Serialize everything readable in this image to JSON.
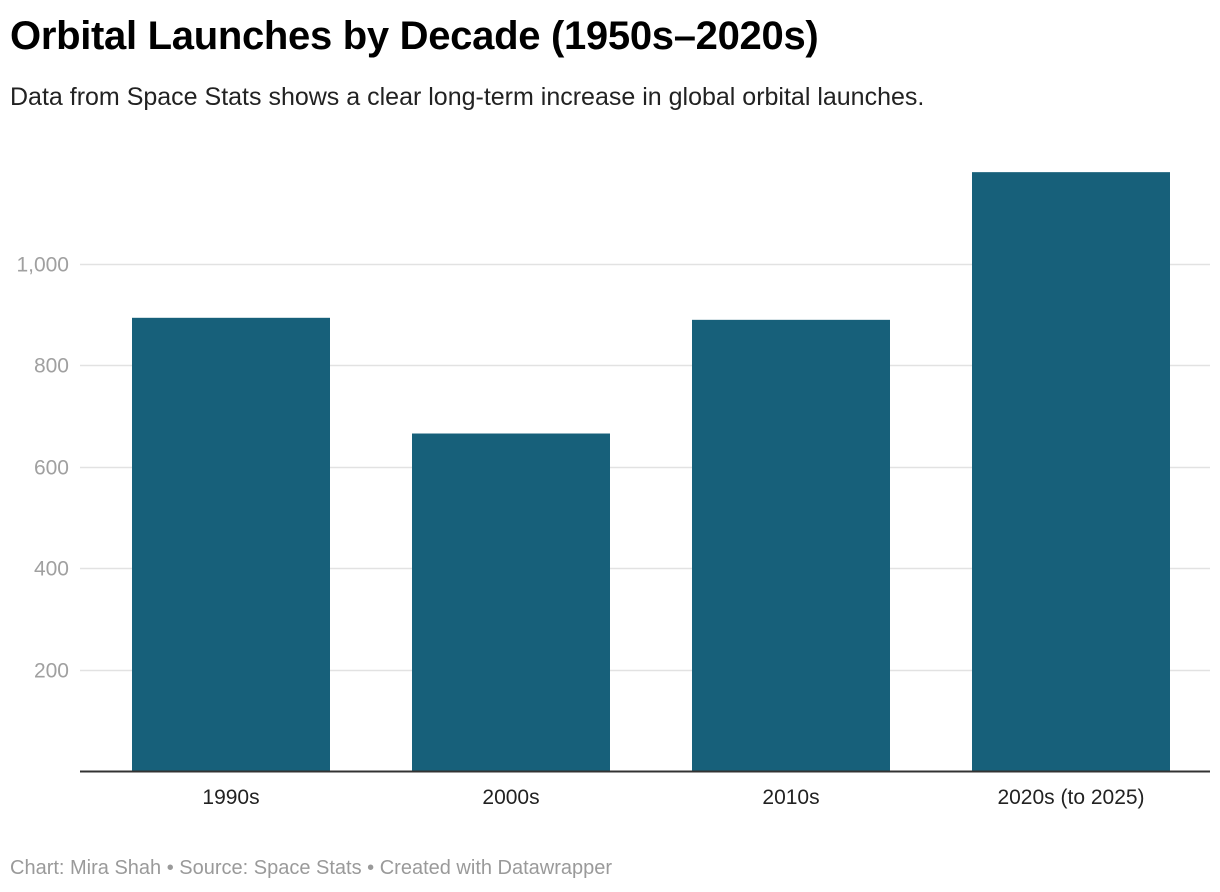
{
  "header": {
    "title": "Orbital Launches by Decade (1950s–2020s)",
    "subtitle": "Data from Space Stats shows a clear long-term increase in global orbital launches."
  },
  "footer": {
    "credit": "Chart: Mira Shah • Source: Space Stats • Created with Datawrapper"
  },
  "colors": {
    "bar": "#17607a",
    "grid": "#e2e2e2",
    "baseline": "#333333"
  },
  "chart_data": {
    "type": "bar",
    "title": "Orbital Launches by Decade (1950s–2020s)",
    "subtitle": "Data from Space Stats shows a clear long-term increase in global orbital launches.",
    "categories": [
      "1990s",
      "2000s",
      "2010s",
      "2020s (to 2025)"
    ],
    "values": [
      893,
      665,
      889,
      1180
    ],
    "xlabel": "",
    "ylabel": "",
    "ylim": [
      0,
      1200
    ],
    "yticks": [
      200,
      400,
      600,
      800,
      1000
    ],
    "ytick_labels": [
      "200",
      "400",
      "600",
      "800",
      "1,000"
    ],
    "grid": true,
    "legend": "none"
  }
}
